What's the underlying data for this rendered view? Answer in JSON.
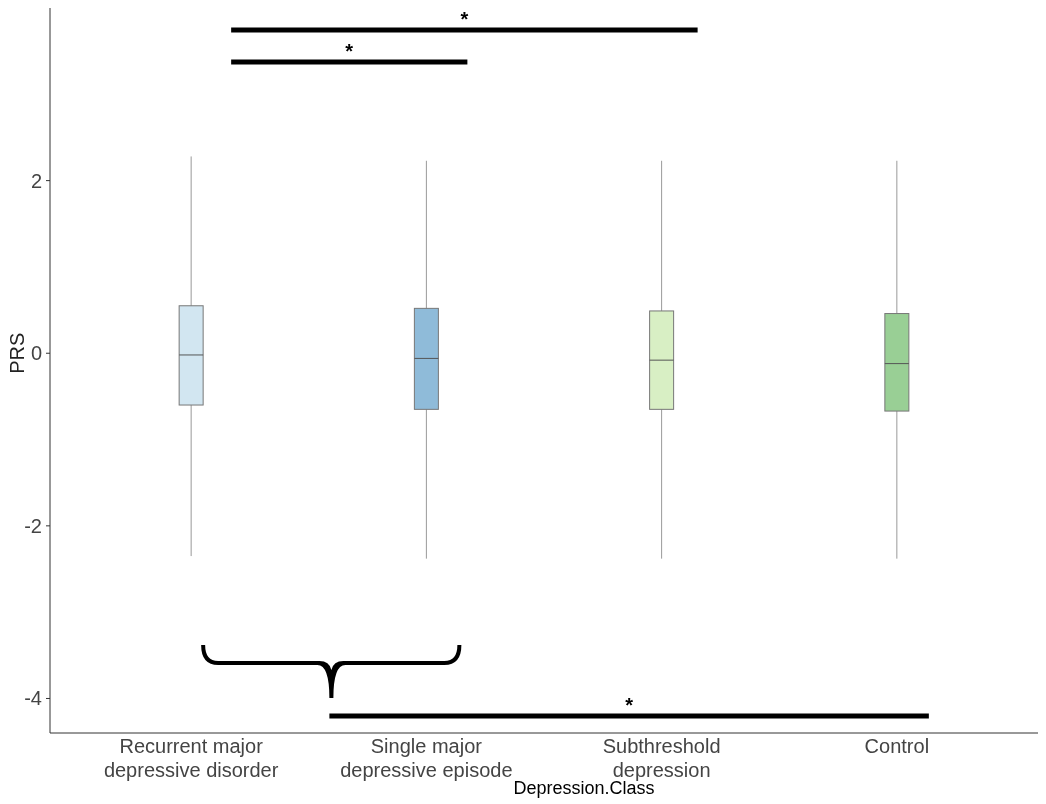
{
  "chart_data": {
    "type": "box",
    "xlabel": "Depression.Class",
    "ylabel": "PRS",
    "categories": [
      "Recurrent major depressive disorder",
      "Single major depressive episode",
      "Subthreshold depression",
      "Control"
    ],
    "colors": [
      "#a6cee3",
      "#1f78b4",
      "#b2df8a",
      "#33a02c"
    ],
    "boxes": [
      {
        "low": -2.35,
        "q1": -0.6,
        "median": -0.02,
        "q3": 0.55,
        "high": 2.28
      },
      {
        "low": -2.38,
        "q1": -0.65,
        "median": -0.06,
        "q3": 0.52,
        "high": 2.23
      },
      {
        "low": -2.38,
        "q1": -0.65,
        "median": -0.08,
        "q3": 0.49,
        "high": 2.23
      },
      {
        "low": -2.38,
        "q1": -0.67,
        "median": -0.12,
        "q3": 0.46,
        "high": 2.23
      }
    ],
    "ylim": [
      -4.4,
      4
    ],
    "yticks": [
      -4,
      -2,
      0,
      2
    ],
    "grid": false,
    "annotations": [
      "*",
      "*",
      "*"
    ]
  }
}
